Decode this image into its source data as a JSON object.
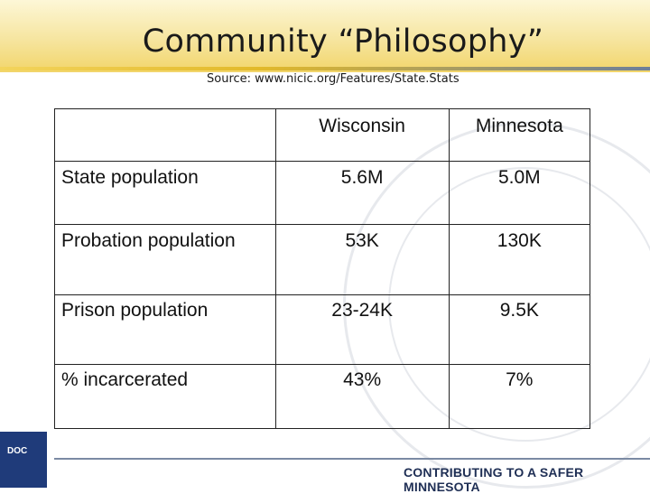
{
  "header": {
    "title": "Community “Philosophy”",
    "source": "Source: www.nicic.org/Features/State.Stats"
  },
  "table": {
    "columns": [
      "",
      "Wisconsin",
      "Minnesota"
    ],
    "rows": [
      {
        "label": "State population",
        "wisconsin": "5.6M",
        "minnesota": "5.0M"
      },
      {
        "label": "Probation population",
        "wisconsin": "53K",
        "minnesota": "130K"
      },
      {
        "label": "Prison population",
        "wisconsin": "23-24K",
        "minnesota": "9.5K"
      },
      {
        "label": "% incarcerated",
        "wisconsin": "43%",
        "minnesota": "7%"
      }
    ]
  },
  "footer": {
    "logo_text": "DOC",
    "tagline": "CONTRIBUTING TO A SAFER MINNESOTA"
  },
  "colors": {
    "title_band": "#f6e59f",
    "footer_text": "#1f2f55",
    "logo_blue": "#1f3b7a"
  }
}
